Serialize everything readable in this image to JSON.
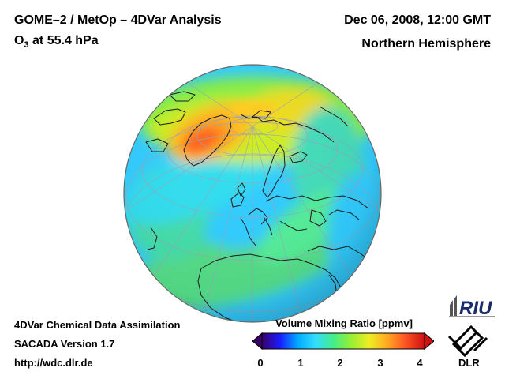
{
  "header": {
    "title": "GOME–2 / MetOp – 4DVar Analysis",
    "subtitle_prefix": "O",
    "subtitle_sub": "3",
    "subtitle_suffix": " at 55.4 hPa",
    "datetime": "Dec 06, 2008, 12:00 GMT",
    "region": "Northern Hemisphere"
  },
  "footer": {
    "line1": "4DVar Chemical Data Assimilation",
    "line2": "SACADA Version 1.7",
    "url": "http://wdc.dlr.de"
  },
  "colorbar": {
    "title": "Volume Mixing Ratio [ppmv]",
    "min": 0,
    "max": 4,
    "ticks": [
      "0",
      "1",
      "2",
      "3",
      "4"
    ],
    "colors": [
      "#3a0066",
      "#1a1aff",
      "#00aaff",
      "#33ddff",
      "#44ee88",
      "#99ee33",
      "#eeee22",
      "#ffaa22",
      "#ff5522",
      "#cc1111"
    ]
  },
  "logos": {
    "riu": "RIU",
    "dlr": "DLR"
  }
}
